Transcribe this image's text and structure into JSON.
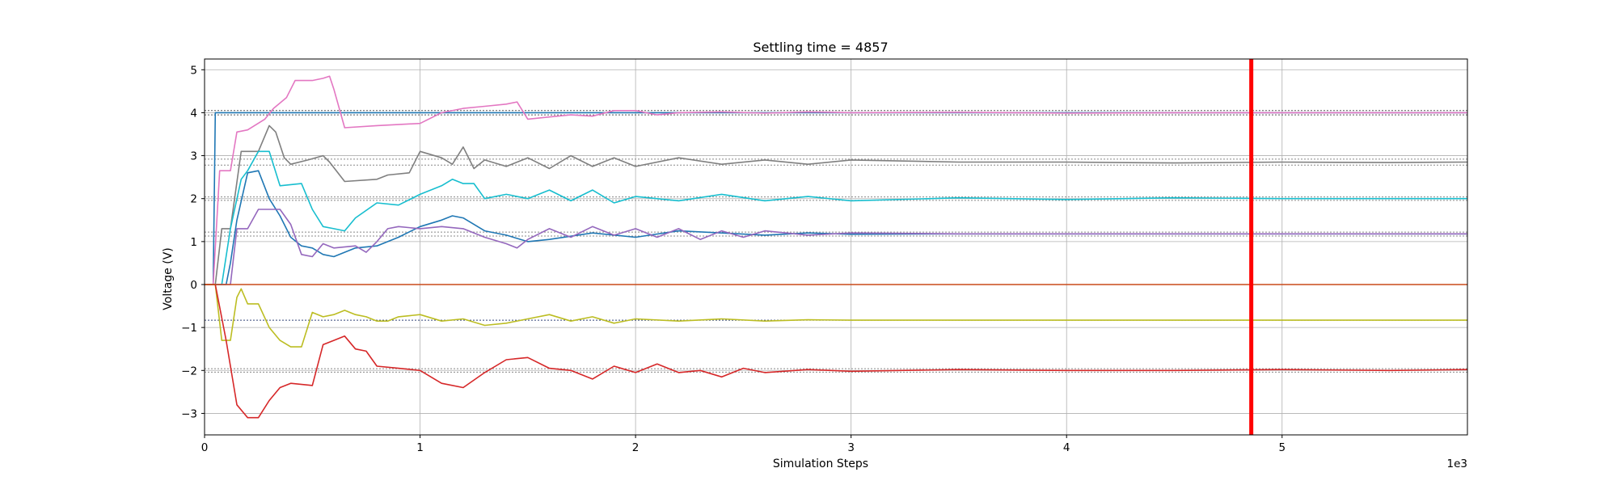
{
  "chart_data": {
    "type": "line",
    "title": "Settling time = 4857",
    "xlabel": "Simulation Steps",
    "ylabel": "Voltage (V)",
    "x_multiplier_label": "1e3",
    "xlim": [
      0,
      5.86
    ],
    "ylim": [
      -3.5,
      5.25
    ],
    "xticks": [
      0,
      1,
      2,
      3,
      4,
      5
    ],
    "xtick_labels": [
      "0",
      "1",
      "2",
      "3",
      "4",
      "5"
    ],
    "yticks": [
      -3,
      -2,
      -1,
      0,
      1,
      2,
      3,
      4,
      5
    ],
    "ytick_labels": [
      "−3",
      "−2",
      "−1",
      "0",
      "1",
      "2",
      "3",
      "4",
      "5"
    ],
    "grid": true,
    "settling_marker": {
      "x": 4.857,
      "color": "#ff0000"
    },
    "reference_lines": [
      {
        "y": 4.05,
        "color": "#555555"
      },
      {
        "y": 3.95,
        "color": "#555555"
      },
      {
        "y": 2.92,
        "color": "#888888"
      },
      {
        "y": 2.78,
        "color": "#888888"
      },
      {
        "y": 2.04,
        "color": "#888888"
      },
      {
        "y": 1.96,
        "color": "#888888"
      },
      {
        "y": 1.22,
        "color": "#888888"
      },
      {
        "y": 1.13,
        "color": "#888888"
      },
      {
        "y": 0.0,
        "color": "#888888"
      },
      {
        "y": -0.83,
        "color": "#334477"
      },
      {
        "y": -1.96,
        "color": "#888888"
      },
      {
        "y": -2.04,
        "color": "#888888"
      }
    ],
    "series": [
      {
        "color": "#1f77b4",
        "x": [
          0,
          0.04,
          0.05,
          0.3,
          0.6,
          1.0,
          2.0,
          3.0,
          4.0,
          5.0,
          5.86
        ],
        "y": [
          0,
          0,
          4.0,
          4.0,
          4.0,
          4.0,
          4.0,
          4.0,
          4.0,
          4.0,
          4.0
        ]
      },
      {
        "color": "#e377c2",
        "x": [
          0,
          0.04,
          0.07,
          0.12,
          0.15,
          0.2,
          0.28,
          0.32,
          0.38,
          0.42,
          0.5,
          0.55,
          0.58,
          0.6,
          0.65,
          0.8,
          1.0,
          1.1,
          1.2,
          1.3,
          1.4,
          1.45,
          1.5,
          1.6,
          1.7,
          1.8,
          1.9,
          2.0,
          2.1,
          2.2,
          2.4,
          2.6,
          2.8,
          3.0,
          3.5,
          4.0,
          4.5,
          5.0,
          5.86
        ],
        "y": [
          0,
          0,
          2.65,
          2.65,
          3.55,
          3.6,
          3.85,
          4.1,
          4.35,
          4.75,
          4.75,
          4.8,
          4.85,
          4.55,
          3.65,
          3.7,
          3.75,
          4.0,
          4.1,
          4.15,
          4.2,
          4.25,
          3.85,
          3.9,
          3.95,
          3.92,
          4.05,
          4.05,
          3.95,
          4.0,
          4.02,
          3.99,
          4.02,
          4.0,
          4.01,
          3.99,
          4.0,
          4.0,
          4.0
        ]
      },
      {
        "color": "#7f7f7f",
        "x": [
          0,
          0.05,
          0.08,
          0.12,
          0.17,
          0.2,
          0.25,
          0.3,
          0.33,
          0.37,
          0.4,
          0.48,
          0.55,
          0.58,
          0.65,
          0.8,
          0.85,
          0.95,
          1.0,
          1.1,
          1.15,
          1.2,
          1.25,
          1.3,
          1.4,
          1.5,
          1.6,
          1.7,
          1.8,
          1.9,
          2.0,
          2.2,
          2.4,
          2.6,
          2.8,
          3.0,
          3.5,
          4.0,
          4.5,
          5.0,
          5.5,
          5.86
        ],
        "y": [
          0,
          0,
          1.3,
          1.3,
          3.1,
          3.1,
          3.1,
          3.7,
          3.55,
          2.95,
          2.8,
          2.9,
          3.0,
          2.85,
          2.4,
          2.45,
          2.55,
          2.6,
          3.1,
          2.95,
          2.8,
          3.2,
          2.7,
          2.9,
          2.75,
          2.95,
          2.7,
          3.0,
          2.75,
          2.95,
          2.75,
          2.95,
          2.8,
          2.9,
          2.8,
          2.9,
          2.85,
          2.85,
          2.83,
          2.85,
          2.84,
          2.85
        ]
      },
      {
        "color": "#17becf",
        "x": [
          0,
          0.05,
          0.08,
          0.12,
          0.17,
          0.2,
          0.25,
          0.3,
          0.35,
          0.45,
          0.5,
          0.55,
          0.6,
          0.65,
          0.7,
          0.8,
          0.9,
          1.0,
          1.1,
          1.15,
          1.2,
          1.25,
          1.3,
          1.4,
          1.5,
          1.6,
          1.7,
          1.8,
          1.9,
          2.0,
          2.2,
          2.4,
          2.6,
          2.8,
          3.0,
          3.5,
          4.0,
          4.5,
          5.0,
          5.5,
          5.86
        ],
        "y": [
          0,
          0,
          0,
          1.3,
          2.45,
          2.65,
          3.1,
          3.1,
          2.3,
          2.35,
          1.75,
          1.35,
          1.3,
          1.25,
          1.55,
          1.9,
          1.85,
          2.1,
          2.3,
          2.45,
          2.35,
          2.35,
          2.0,
          2.1,
          2.0,
          2.2,
          1.95,
          2.2,
          1.9,
          2.05,
          1.95,
          2.1,
          1.95,
          2.05,
          1.95,
          2.02,
          1.98,
          2.02,
          2.0,
          2.0,
          2.0
        ]
      },
      {
        "color": "#1f77b4",
        "x": [
          0,
          0.1,
          0.12,
          0.15,
          0.2,
          0.25,
          0.3,
          0.35,
          0.4,
          0.45,
          0.5,
          0.55,
          0.6,
          0.7,
          0.8,
          0.9,
          1.0,
          1.1,
          1.15,
          1.2,
          1.3,
          1.4,
          1.5,
          1.6,
          1.8,
          2.0,
          2.2,
          2.4,
          2.6,
          2.8,
          3.0,
          3.5,
          4.0,
          5.0,
          5.86
        ],
        "y": [
          0,
          0,
          0.5,
          1.5,
          2.6,
          2.65,
          2.0,
          1.6,
          1.1,
          0.9,
          0.85,
          0.7,
          0.65,
          0.85,
          0.9,
          1.1,
          1.35,
          1.5,
          1.6,
          1.55,
          1.25,
          1.15,
          1.0,
          1.05,
          1.2,
          1.1,
          1.25,
          1.2,
          1.15,
          1.2,
          1.17,
          1.18,
          1.18,
          1.18,
          1.18
        ]
      },
      {
        "color": "#9467bd",
        "x": [
          0,
          0.1,
          0.12,
          0.15,
          0.2,
          0.25,
          0.3,
          0.35,
          0.4,
          0.45,
          0.5,
          0.55,
          0.6,
          0.7,
          0.75,
          0.8,
          0.85,
          0.9,
          1.0,
          1.1,
          1.2,
          1.3,
          1.4,
          1.45,
          1.5,
          1.6,
          1.7,
          1.8,
          1.9,
          2.0,
          2.1,
          2.2,
          2.3,
          2.4,
          2.5,
          2.6,
          2.8,
          3.0,
          3.5,
          4.0,
          5.0,
          5.86
        ],
        "y": [
          0,
          0,
          0,
          1.3,
          1.3,
          1.75,
          1.75,
          1.75,
          1.4,
          0.7,
          0.65,
          0.95,
          0.85,
          0.9,
          0.75,
          1.0,
          1.3,
          1.35,
          1.3,
          1.35,
          1.3,
          1.1,
          0.95,
          0.85,
          1.05,
          1.3,
          1.1,
          1.35,
          1.15,
          1.3,
          1.1,
          1.3,
          1.05,
          1.25,
          1.1,
          1.25,
          1.15,
          1.2,
          1.18,
          1.18,
          1.18,
          1.18
        ]
      },
      {
        "color": "#bcbd22",
        "x": [
          0,
          0.05,
          0.08,
          0.12,
          0.15,
          0.17,
          0.2,
          0.25,
          0.3,
          0.35,
          0.4,
          0.45,
          0.5,
          0.55,
          0.6,
          0.65,
          0.7,
          0.75,
          0.8,
          0.85,
          0.9,
          1.0,
          1.1,
          1.2,
          1.3,
          1.4,
          1.5,
          1.6,
          1.7,
          1.8,
          1.9,
          2.0,
          2.2,
          2.4,
          2.6,
          2.8,
          3.0,
          3.5,
          4.0,
          4.5,
          5.0,
          5.86
        ],
        "y": [
          0,
          0,
          -1.3,
          -1.3,
          -0.3,
          -0.1,
          -0.45,
          -0.45,
          -1.0,
          -1.3,
          -1.45,
          -1.45,
          -0.65,
          -0.75,
          -0.7,
          -0.6,
          -0.7,
          -0.75,
          -0.85,
          -0.85,
          -0.75,
          -0.7,
          -0.85,
          -0.8,
          -0.95,
          -0.9,
          -0.8,
          -0.7,
          -0.85,
          -0.75,
          -0.9,
          -0.8,
          -0.85,
          -0.8,
          -0.85,
          -0.82,
          -0.83,
          -0.83,
          -0.83,
          -0.83,
          -0.83,
          -0.83
        ]
      },
      {
        "color": "#d62728",
        "x": [
          0,
          0.05,
          0.1,
          0.15,
          0.2,
          0.25,
          0.3,
          0.35,
          0.4,
          0.5,
          0.55,
          0.6,
          0.65,
          0.7,
          0.75,
          0.8,
          0.9,
          1.0,
          1.1,
          1.2,
          1.3,
          1.4,
          1.5,
          1.6,
          1.7,
          1.8,
          1.9,
          2.0,
          2.1,
          2.2,
          2.3,
          2.4,
          2.5,
          2.6,
          2.8,
          3.0,
          3.5,
          4.0,
          4.5,
          5.0,
          5.5,
          5.86
        ],
        "y": [
          0,
          0,
          -1.3,
          -2.8,
          -3.1,
          -3.1,
          -2.7,
          -2.4,
          -2.3,
          -2.35,
          -1.4,
          -1.3,
          -1.2,
          -1.5,
          -1.55,
          -1.9,
          -1.95,
          -2.0,
          -2.3,
          -2.4,
          -2.05,
          -1.75,
          -1.7,
          -1.95,
          -2.0,
          -2.2,
          -1.9,
          -2.05,
          -1.85,
          -2.05,
          -2.0,
          -2.15,
          -1.95,
          -2.05,
          -1.98,
          -2.02,
          -1.98,
          -2.0,
          -2.0,
          -1.98,
          -2.0,
          -1.98
        ]
      },
      {
        "color": "#c84a1a",
        "x": [
          0,
          5.86
        ],
        "y": [
          0,
          0
        ]
      }
    ]
  }
}
